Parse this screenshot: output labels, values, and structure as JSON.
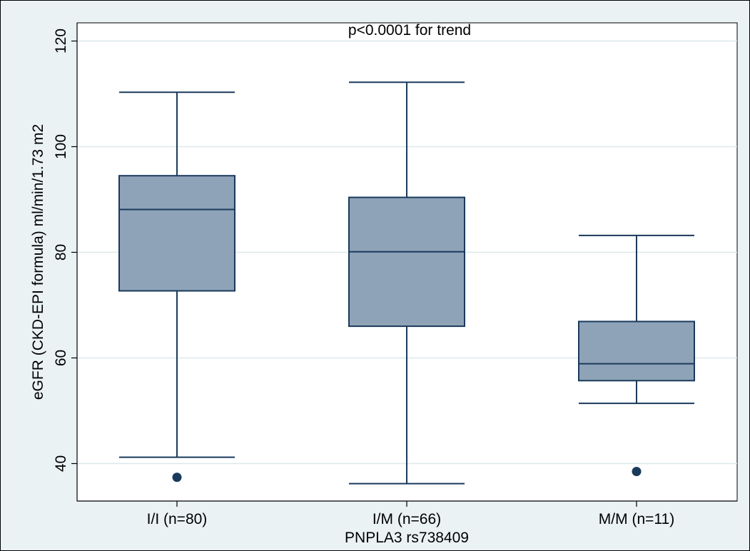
{
  "chart_data": {
    "type": "box",
    "annotation": "p<0.0001 for trend",
    "xlabel": "PNPLA3 rs738409",
    "ylabel": "eGFR (CKD-EPI formula) ml/min/1.73 m2",
    "ylim": [
      35,
      122
    ],
    "yticks": [
      40,
      60,
      80,
      100,
      120
    ],
    "grid": true,
    "colors": {
      "box_fill": "#8fa3b8",
      "box_stroke": "#1a3a5c",
      "outlier": "#1a3a5c",
      "grid": "#dde8ea",
      "background": "#eaf2f3"
    },
    "groups": [
      {
        "label": "I/I (n=80)",
        "whisker_low": 41.2,
        "q1": 72.7,
        "median": 88.1,
        "q3": 94.5,
        "whisker_high": 110.3,
        "outliers": [
          37.4
        ]
      },
      {
        "label": "I/M (n=66)",
        "whisker_low": 36.2,
        "q1": 66.0,
        "median": 80.1,
        "q3": 90.4,
        "whisker_high": 112.2,
        "outliers": []
      },
      {
        "label": "M/M (n=11)",
        "whisker_low": 51.4,
        "q1": 55.7,
        "median": 58.9,
        "q3": 66.9,
        "whisker_high": 83.2,
        "outliers": [
          38.5
        ]
      }
    ]
  }
}
